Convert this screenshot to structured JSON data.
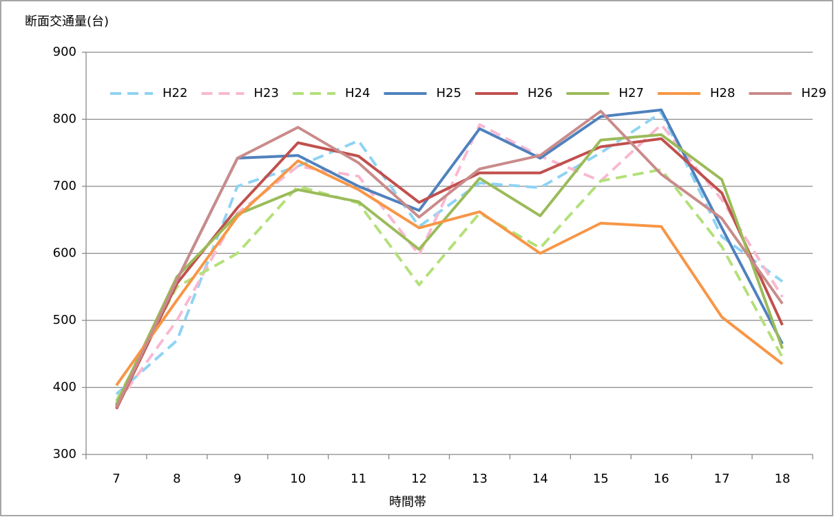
{
  "chart_data": {
    "type": "line",
    "y_label": "断面交通量(台)",
    "x_label": "時間帯",
    "categories": [
      "7",
      "8",
      "9",
      "10",
      "11",
      "12",
      "13",
      "14",
      "15",
      "16",
      "17",
      "18"
    ],
    "ylim": [
      300,
      900
    ],
    "yticks": [
      300,
      400,
      500,
      600,
      700,
      800,
      900
    ],
    "grid": true,
    "legend": "top",
    "series": [
      {
        "name": "H22",
        "color": "#8ed3f4",
        "dashed": true,
        "values": [
          390,
          470,
          700,
          730,
          768,
          640,
          705,
          698,
          750,
          810,
          625,
          558
        ]
      },
      {
        "name": "H23",
        "color": "#f9b8d0",
        "dashed": true,
        "values": [
          375,
          500,
          660,
          730,
          715,
          598,
          792,
          745,
          708,
          792,
          680,
          535
        ]
      },
      {
        "name": "H24",
        "color": "#b3e07a",
        "dashed": true,
        "values": [
          380,
          550,
          600,
          700,
          675,
          553,
          660,
          608,
          708,
          725,
          610,
          445
        ]
      },
      {
        "name": "H25",
        "color": "#4f81bd",
        "dashed": false,
        "values": [
          372,
          560,
          742,
          746,
          700,
          664,
          786,
          742,
          804,
          814,
          638,
          465
        ]
      },
      {
        "name": "H26",
        "color": "#c0504d",
        "dashed": false,
        "values": [
          368,
          555,
          668,
          765,
          745,
          676,
          720,
          720,
          759,
          771,
          690,
          493
        ]
      },
      {
        "name": "H27",
        "color": "#9bbb59",
        "dashed": false,
        "values": [
          375,
          565,
          658,
          695,
          677,
          606,
          712,
          656,
          769,
          777,
          710,
          458
        ]
      },
      {
        "name": "H28",
        "color": "#f79646",
        "dashed": false,
        "values": [
          403,
          530,
          655,
          738,
          695,
          638,
          662,
          600,
          645,
          640,
          505,
          435
        ]
      },
      {
        "name": "H29",
        "color": "#c98b8a",
        "dashed": false,
        "values": [
          370,
          560,
          742,
          788,
          735,
          654,
          726,
          746,
          812,
          718,
          652,
          525
        ]
      }
    ]
  }
}
